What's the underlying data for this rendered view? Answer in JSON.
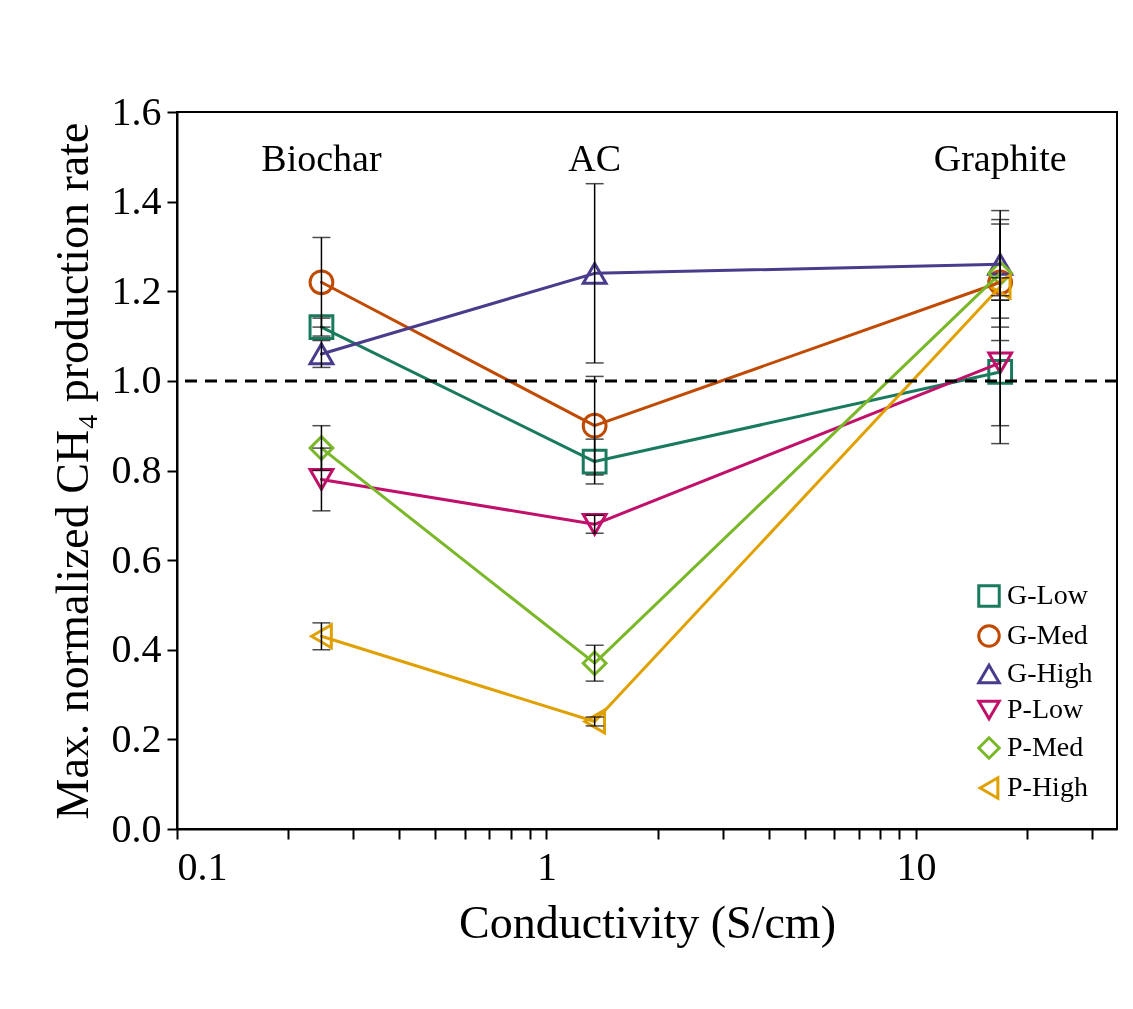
{
  "chart_data": {
    "type": "line",
    "xlabel": "Conductivity (S/cm)",
    "ylabel": "Max. normalized CH₄ production rate",
    "x": [
      0.246,
      1.35,
      16.9
    ],
    "log": "x",
    "xlim": [
      0.1,
      35
    ],
    "xticks": [
      0.1,
      {
        "value": 0.2,
        "label": null
      },
      {
        "value": 0.3,
        "label": null
      },
      {
        "value": 0.4,
        "label": null
      },
      {
        "value": 0.5,
        "label": null
      },
      {
        "value": 0.6,
        "label": null
      },
      {
        "value": 0.7,
        "label": null
      },
      {
        "value": 0.8,
        "label": null
      },
      {
        "value": 0.9,
        "label": null
      },
      1,
      {
        "value": 2,
        "label": null
      },
      {
        "value": 3,
        "label": null
      },
      {
        "value": 4,
        "label": null
      },
      {
        "value": 5,
        "label": null
      },
      {
        "value": 6,
        "label": null
      },
      {
        "value": 7,
        "label": null
      },
      {
        "value": 8,
        "label": null
      },
      {
        "value": 9,
        "label": null
      },
      10,
      {
        "value": 20,
        "label": null
      },
      {
        "value": 30,
        "label": null
      }
    ],
    "ylim": [
      0,
      1.6
    ],
    "yticks": [
      {
        "value": 0,
        "label": "0.0"
      },
      0.2,
      0.4,
      0.6,
      0.8,
      {
        "value": 1,
        "label": "1.0"
      },
      1.2,
      1.4,
      1.6
    ],
    "grid": false,
    "legend": "bottom right",
    "line_style": "solid",
    "series": [
      {
        "name": "G-Low",
        "color": "#1a7a5e",
        "marker": "square",
        "values": [
          1.12,
          0.82,
          1.02
        ],
        "errors": [
          0.02,
          0.05,
          0.16
        ]
      },
      {
        "name": "G-Med",
        "color": "#c04a00",
        "marker": "circle",
        "values": [
          1.22,
          0.9,
          1.22
        ],
        "errors": [
          0.1,
          0.11,
          0.13
        ]
      },
      {
        "name": "G-High",
        "color": "#4a3b8c",
        "marker": "triangle-up",
        "values": [
          1.06,
          1.24,
          1.26
        ],
        "errors": [
          0.03,
          0.2,
          0.12
        ]
      },
      {
        "name": "P-Low",
        "color": "#c0106a",
        "marker": "triangle-down",
        "values": [
          0.78,
          0.68,
          1.04
        ],
        "errors": [
          0.07,
          0.02,
          0.14
        ]
      },
      {
        "name": "P-Med",
        "color": "#7ab82a",
        "marker": "diamond",
        "values": [
          0.85,
          0.37,
          1.24
        ],
        "errors": [
          0.05,
          0.04,
          0.12
        ]
      },
      {
        "name": "P-High",
        "color": "#e0a000",
        "marker": "triangle-left",
        "values": [
          0.43,
          0.24,
          1.21
        ],
        "errors": [
          0.03,
          0.01,
          0.02
        ]
      }
    ],
    "ref_lines": [
      {
        "axis": "y",
        "value": 1,
        "color": "#000000",
        "line_style": "dashed"
      }
    ],
    "annotations": [
      "Biochar",
      "AC",
      "Graphite"
    ]
  }
}
